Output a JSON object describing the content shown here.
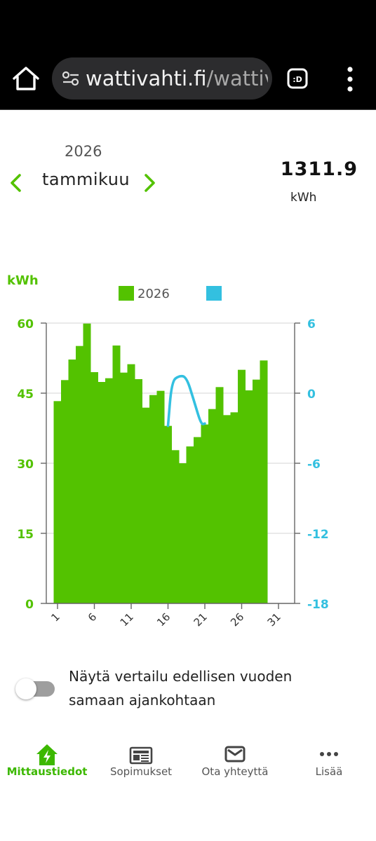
{
  "browser": {
    "url_host": "wattivahti.fi",
    "url_path": "/wattiv"
  },
  "period": {
    "year": "2026",
    "month": "tammikuu"
  },
  "total": {
    "value": "1311.9",
    "unit": "kWh"
  },
  "chart_data": {
    "type": "bar",
    "y_axis_label": "kWh",
    "legend": [
      {
        "label": "2026",
        "color": "#53c200"
      },
      {
        "label": "",
        "color": "#33c0e0"
      }
    ],
    "left_axis": {
      "ticks": [
        "60",
        "45",
        "30",
        "15",
        "0"
      ],
      "min": 0,
      "max": 60
    },
    "right_axis": {
      "ticks": [
        "6",
        "0",
        "-6",
        "-12",
        "-18"
      ],
      "min": -18,
      "max": 6
    },
    "x_ticks": [
      "1",
      "6",
      "11",
      "16",
      "21",
      "26",
      "31"
    ],
    "days": [
      1,
      2,
      3,
      4,
      5,
      6,
      7,
      8,
      9,
      10,
      11,
      12,
      13,
      14,
      15,
      16,
      17,
      18,
      19,
      20,
      21,
      22,
      23,
      24,
      25,
      26,
      27,
      28,
      29
    ],
    "values": [
      43.3,
      47.8,
      52.2,
      55.1,
      59.9,
      49.5,
      47.4,
      48.2,
      55.2,
      49.4,
      51.2,
      48.0,
      41.9,
      44.6,
      45.5,
      38.0,
      32.8,
      30.0,
      33.6,
      35.6,
      38.3,
      41.6,
      46.3,
      40.3,
      40.9,
      50.0,
      45.6,
      47.9,
      52.0
    ],
    "series_line": {
      "color": "#33c0e0",
      "points": [
        [
          16,
          -2.8
        ],
        [
          16.5,
          1.0
        ],
        [
          17.5,
          1.5
        ],
        [
          18.5,
          1.4
        ],
        [
          19.5,
          -0.6
        ],
        [
          20.5,
          -2.7
        ],
        [
          21,
          -2.6
        ]
      ]
    }
  },
  "compare_toggle": {
    "label": "Näytä vertailu edellisen vuoden samaan ajankohtaan",
    "checked": false
  },
  "nav": [
    {
      "label": "Mittaustiedot",
      "icon": "meter-icon",
      "active": true
    },
    {
      "label": "Sopimukset",
      "icon": "contract-icon",
      "active": false
    },
    {
      "label": "Ota yhteyttä",
      "icon": "mail-icon",
      "active": false
    },
    {
      "label": "Lisää",
      "icon": "more-icon",
      "active": false
    }
  ],
  "colors": {
    "accent": "#53c200",
    "secondary": "#33c0e0"
  }
}
